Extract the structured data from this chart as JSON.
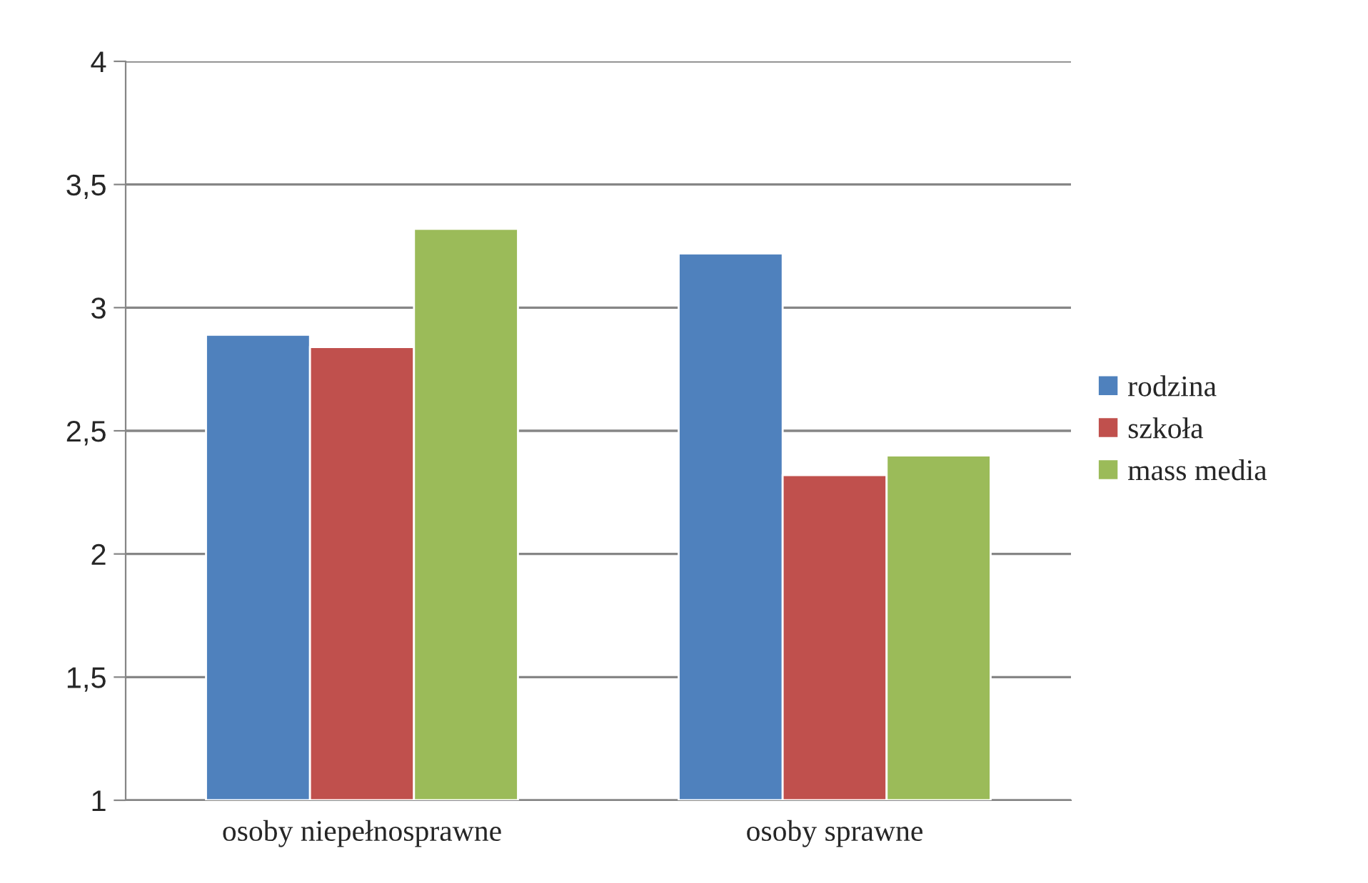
{
  "chart_data": {
    "type": "bar",
    "categories": [
      "osoby niepełnosprawne",
      "osoby sprawne"
    ],
    "series": [
      {
        "name": "rodzina",
        "color": "#4f81bd",
        "values": [
          2.89,
          3.22
        ]
      },
      {
        "name": "szkoła",
        "color": "#c0504d",
        "values": [
          2.84,
          2.32
        ]
      },
      {
        "name": "mass media",
        "color": "#9bbb59",
        "values": [
          3.32,
          2.4
        ]
      }
    ],
    "ylim": [
      1,
      4
    ],
    "yticks": [
      {
        "value": 1,
        "label": "1"
      },
      {
        "value": 1.5,
        "label": "1,5"
      },
      {
        "value": 2,
        "label": "2"
      },
      {
        "value": 2.5,
        "label": "2,5"
      },
      {
        "value": 3,
        "label": "3"
      },
      {
        "value": 3.5,
        "label": "3,5"
      },
      {
        "value": 4,
        "label": "4"
      }
    ],
    "grid": "y",
    "legend": "right"
  }
}
